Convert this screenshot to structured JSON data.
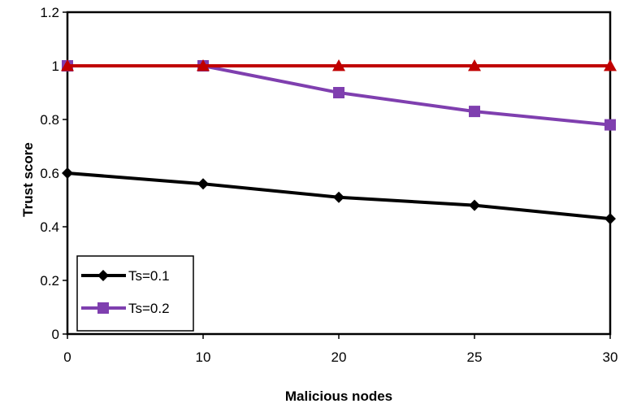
{
  "chart_data": {
    "type": "line",
    "title": "",
    "xlabel": "Malicious nodes",
    "ylabel": "Trust score",
    "categories": [
      "0",
      "10",
      "20",
      "25",
      "30"
    ],
    "ylim": [
      0,
      1.2
    ],
    "yticks": [
      "0",
      "0.2",
      "0.4",
      "0.6",
      "0.8",
      "1",
      "1.2"
    ],
    "grid": false,
    "legend_placement": "bottom-left",
    "series": [
      {
        "name": "Ts=0.1",
        "values": [
          0.6,
          0.56,
          0.51,
          0.48,
          0.43
        ],
        "color": "#000000",
        "marker": "diamond",
        "in_legend": true
      },
      {
        "name": "Ts=0.2",
        "values": [
          1.0,
          1.0,
          0.9,
          0.83,
          0.78
        ],
        "color": "#7F3FAF",
        "marker": "square",
        "in_legend": true
      },
      {
        "name": "",
        "values": [
          1.0,
          1.0,
          1.0,
          1.0,
          1.0
        ],
        "color": "#C00000",
        "marker": "triangle",
        "in_legend": false
      }
    ]
  }
}
